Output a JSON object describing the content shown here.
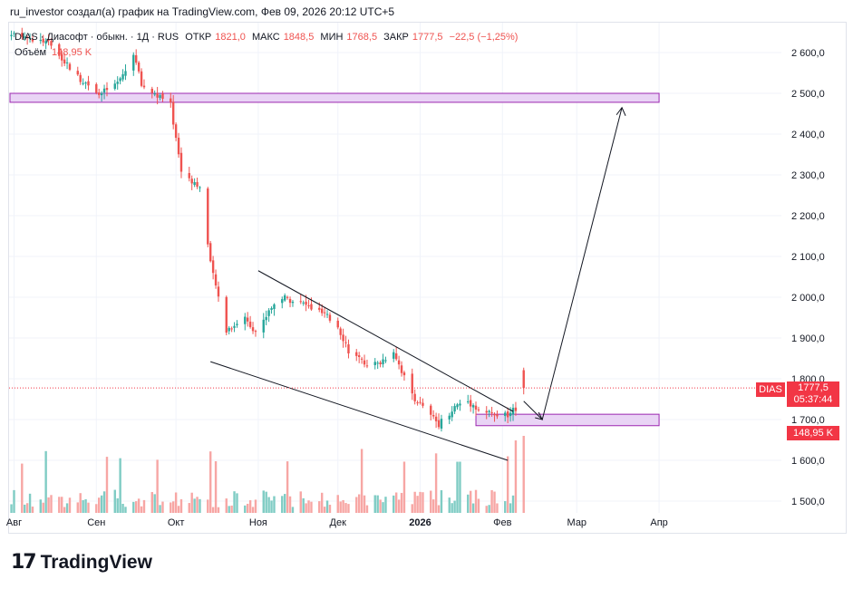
{
  "caption": "ru_investor создал(а) график на TradingView.com, Фев 09, 2026 20:12 UTC+5",
  "legend": {
    "symbol": "DIAS · Диасофт · обыкн. · 1Д · RUS",
    "open_label": "ОТКР",
    "open_value": "1821,0",
    "high_label": "МАКС",
    "high_value": "1848,5",
    "low_label": "МИН",
    "low_value": "1768,5",
    "close_label": "ЗАКР",
    "close_value": "1777,5",
    "change": "−22,5 (−1,25%)",
    "volume_label": "Объём",
    "volume_value": "148,95 K"
  },
  "price_tag": {
    "symbol": "DIAS",
    "price": "1777,5",
    "countdown": "05:37:44",
    "volume": "148,95 K"
  },
  "logo": {
    "mark": "17",
    "word": "TradingView"
  },
  "colors": {
    "up": "#26a69a",
    "down": "#ef5350",
    "volume_up": "#7fccc4",
    "volume_down": "#f7a6a4",
    "zone_fill": "#e9d4f5",
    "zone_stroke": "#9c27b0",
    "price_line": "#f23645"
  },
  "chart_data": {
    "type": "candlestick",
    "interval": "1D",
    "ylim": [
      1450,
      2680
    ],
    "y_ticks": [
      "2 600,0",
      "2 500,0",
      "2 400,0",
      "2 300,0",
      "2 200,0",
      "2 100,0",
      "2 000,0",
      "1 900,0",
      "1 800,0",
      "1 700,0",
      "1 600,0",
      "1 500,0"
    ],
    "y_tick_values": [
      2600,
      2500,
      2400,
      2300,
      2200,
      2100,
      2000,
      1900,
      1800,
      1700,
      1600,
      1500
    ],
    "x_ticks": [
      "Авг",
      "Сен",
      "Окт",
      "Ноя",
      "Дек",
      "2026",
      "Фев",
      "Мар",
      "Апр"
    ],
    "x_tick_dates": [
      "2025-08-01",
      "2025-09-01",
      "2025-10-01",
      "2025-11-01",
      "2025-12-01",
      "2026-01-01",
      "2026-02-01",
      "2026-03-01",
      "2026-04-01"
    ],
    "last_close": 1777.5,
    "price_path": [
      [
        "2025-07-25",
        2640
      ],
      [
        "2025-08-05",
        2640
      ],
      [
        "2025-08-15",
        2620
      ],
      [
        "2025-08-25",
        2540
      ],
      [
        "2025-09-03",
        2500
      ],
      [
        "2025-09-10",
        2530
      ],
      [
        "2025-09-15",
        2600
      ],
      [
        "2025-09-18",
        2520
      ],
      [
        "2025-09-25",
        2490
      ],
      [
        "2025-09-29",
        2470
      ],
      [
        "2025-10-03",
        2310
      ],
      [
        "2025-10-10",
        2270
      ],
      [
        "2025-10-14",
        2080
      ],
      [
        "2025-10-20",
        1920
      ],
      [
        "2025-10-27",
        1950
      ],
      [
        "2025-11-01",
        1910
      ],
      [
        "2025-11-05",
        1970
      ],
      [
        "2025-11-10",
        2000
      ],
      [
        "2025-11-16",
        1990
      ],
      [
        "2025-11-25",
        1960
      ],
      [
        "2025-12-01",
        1930
      ],
      [
        "2025-12-05",
        1870
      ],
      [
        "2025-12-10",
        1840
      ],
      [
        "2025-12-16",
        1835
      ],
      [
        "2025-12-22",
        1870
      ],
      [
        "2025-12-28",
        1770
      ],
      [
        "2026-01-03",
        1720
      ],
      [
        "2026-01-08",
        1690
      ],
      [
        "2026-01-14",
        1730
      ],
      [
        "2026-01-18",
        1750
      ],
      [
        "2026-01-24",
        1720
      ],
      [
        "2026-01-30",
        1710
      ],
      [
        "2026-02-04",
        1710
      ],
      [
        "2026-02-06",
        1730
      ],
      [
        "2026-02-07",
        1790
      ],
      [
        "2026-02-08",
        1830
      ],
      [
        "2026-02-09",
        1777.5
      ]
    ],
    "drawings": {
      "resistance_zone": {
        "from": "2025-07-25",
        "to": "2026-04-01",
        "low": 2478,
        "high": 2500
      },
      "support_zone": {
        "from": "2026-01-22",
        "to": "2026-04-01",
        "low": 1685,
        "high": 1713
      },
      "wedge_upper": [
        [
          "2025-11-01",
          2065
        ],
        [
          "2026-02-05",
          1720
        ]
      ],
      "wedge_lower": [
        [
          "2025-10-14",
          1842
        ],
        [
          "2026-02-03",
          1600
        ]
      ],
      "forecast_path": [
        [
          "2026-02-09",
          1745
        ],
        [
          "2026-02-16",
          1700
        ],
        [
          "2026-03-18",
          2465
        ]
      ]
    }
  }
}
